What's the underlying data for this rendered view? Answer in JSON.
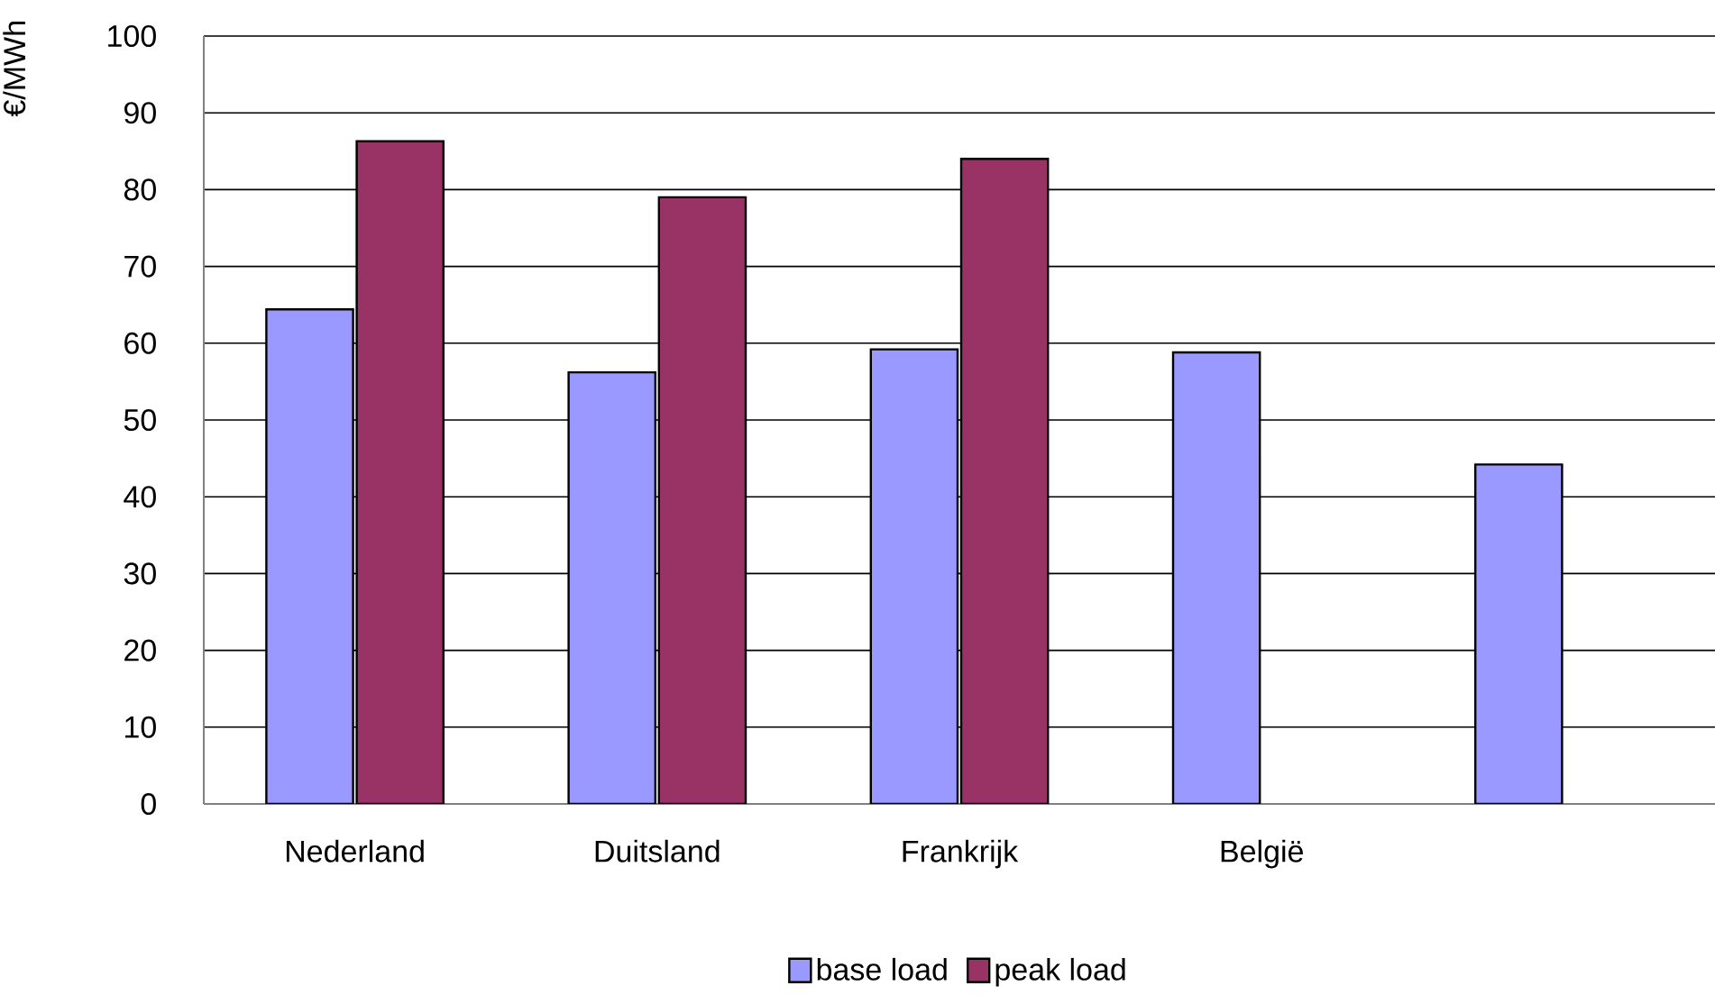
{
  "chart_data": {
    "type": "bar",
    "ylabel": "€/MWh",
    "categories": [
      "Nederland",
      "Duitsland",
      "Frankrijk",
      "België",
      null
    ],
    "series": [
      {
        "name": "base load",
        "color": "#9999ff",
        "values": [
          64.4,
          56.2,
          59.2,
          58.8,
          44.2
        ]
      },
      {
        "name": "peak load",
        "color": "#993366",
        "values": [
          86.3,
          79.0,
          84.0,
          null,
          null
        ]
      }
    ],
    "ylim": [
      0,
      100
    ],
    "yticks": [
      0,
      10,
      20,
      30,
      40,
      50,
      60,
      70,
      80,
      90,
      100
    ],
    "grid": "y",
    "legend": "bottom"
  }
}
